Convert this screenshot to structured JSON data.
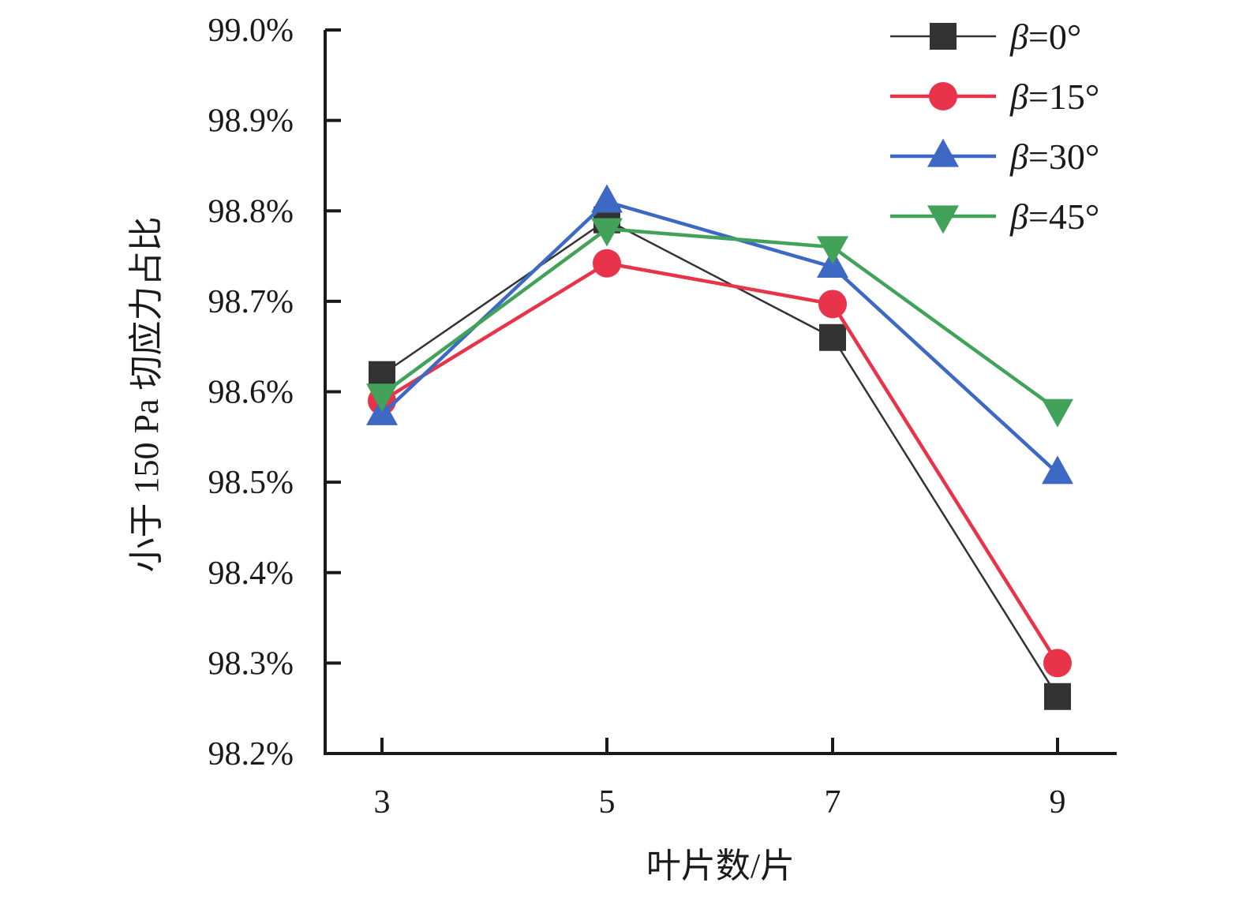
{
  "chart_data": {
    "type": "line",
    "title": "",
    "xlabel": "叶片数/片",
    "ylabel": "小于 150 Pa 切应力占比",
    "x": [
      3,
      5,
      7,
      9
    ],
    "x_tick_labels": [
      "3",
      "5",
      "7",
      "9"
    ],
    "ylim": [
      98.2,
      99.0
    ],
    "y_ticks": [
      98.2,
      98.3,
      98.4,
      98.5,
      98.6,
      98.7,
      98.8,
      98.9,
      99.0
    ],
    "y_tick_labels": [
      "98.2%",
      "98.3%",
      "98.4%",
      "98.5%",
      "98.6%",
      "98.7%",
      "98.8%",
      "98.9%",
      "99.0%"
    ],
    "grid": false,
    "legend_position": "top-right",
    "series": [
      {
        "name": "β=0°",
        "name_symbol": "β",
        "name_rest": "=0°",
        "marker": "square",
        "color": "#333333",
        "values": [
          98.619,
          98.79,
          98.66,
          98.263
        ]
      },
      {
        "name": "β=15°",
        "name_symbol": "β",
        "name_rest": "=15°",
        "marker": "circle",
        "color": "#e8344a",
        "values": [
          98.59,
          98.742,
          98.697,
          98.3
        ]
      },
      {
        "name": "β=30°",
        "name_symbol": "β",
        "name_rest": "=30°",
        "marker": "triangle-up",
        "color": "#3d68c4",
        "values": [
          98.575,
          98.81,
          98.738,
          98.51
        ]
      },
      {
        "name": "β=45°",
        "name_symbol": "β",
        "name_rest": "=45°",
        "marker": "triangle-down",
        "color": "#43a25a",
        "values": [
          98.597,
          98.78,
          98.76,
          98.58
        ]
      }
    ]
  }
}
